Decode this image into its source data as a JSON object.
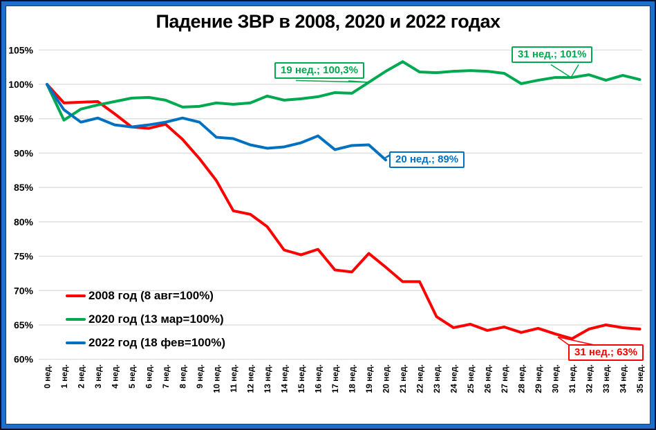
{
  "title": "Падение ЗВР в 2008, 2020 и 2022 годах",
  "chart_data": {
    "type": "line",
    "title": "Падение ЗВР в 2008, 2020 и 2022 годах",
    "xlabel": "",
    "ylabel": "",
    "ylim": [
      60,
      105
    ],
    "grid": true,
    "legend_position": "inside-bottom-left",
    "y_tick_labels": [
      "105%",
      "100%",
      "95%",
      "90%",
      "85%",
      "80%",
      "75%",
      "70%",
      "65%",
      "60%"
    ],
    "x_tick_labels": [
      "0 нед.",
      "1 нед.",
      "2 нед.",
      "3 нед.",
      "4 нед.",
      "5 нед.",
      "6 нед.",
      "7 нед.",
      "8 нед.",
      "9 нед.",
      "10 нед.",
      "11 нед.",
      "12 нед.",
      "13 нед.",
      "14 нед.",
      "15 нед.",
      "16 нед.",
      "17 нед.",
      "18 нед.",
      "19 нед.",
      "20 нед.",
      "21 нед.",
      "22 нед.",
      "23 нед.",
      "24 нед.",
      "25 нед.",
      "26 нед.",
      "27 нед.",
      "28 нед.",
      "29 нед.",
      "30 нед.",
      "31 нед.",
      "32 нед.",
      "33 нед.",
      "34 нед.",
      "35 нед."
    ],
    "series": [
      {
        "name": "2008 год (8 авг=100%)",
        "color": "#ff0000",
        "values": [
          100,
          97.3,
          97.4,
          97.5,
          95.7,
          93.8,
          93.6,
          94.2,
          92.0,
          89.2,
          86.0,
          81.6,
          81.1,
          79.3,
          75.9,
          75.2,
          76.0,
          73.0,
          72.7,
          75.4,
          73.4,
          71.3,
          71.3,
          66.2,
          64.6,
          65.1,
          64.2,
          64.7,
          63.9,
          64.5,
          63.7,
          63.0,
          64.4,
          65.0,
          64.6,
          64.4
        ]
      },
      {
        "name": "2020 год (13 мар=100%)",
        "color": "#00a84f",
        "values": [
          100,
          94.8,
          96.4,
          97.0,
          97.5,
          98.0,
          98.1,
          97.7,
          96.7,
          96.8,
          97.3,
          97.1,
          97.3,
          98.3,
          97.7,
          97.9,
          98.2,
          98.8,
          98.7,
          100.3,
          101.9,
          103.3,
          101.8,
          101.7,
          101.9,
          102.0,
          101.9,
          101.6,
          100.1,
          100.6,
          101.0,
          101.0,
          101.4,
          100.6,
          101.3,
          100.7
        ]
      },
      {
        "name": "2022 год (18 фев=100%)",
        "color": "#0070c0",
        "values": [
          100,
          96.3,
          94.5,
          95.1,
          94.1,
          93.8,
          94.1,
          94.5,
          95.1,
          94.5,
          92.3,
          92.1,
          91.2,
          90.7,
          90.9,
          91.5,
          92.5,
          90.5,
          91.1,
          91.2,
          89.0
        ]
      }
    ],
    "annotations": [
      {
        "label": "19 нед.; 100,3%",
        "series": 1,
        "week": 19,
        "value": 100.3
      },
      {
        "label": "31 нед.; 101%",
        "series": 1,
        "week": 31,
        "value": 101
      },
      {
        "label": "20 нед.; 89%",
        "series": 2,
        "week": 20,
        "value": 89
      },
      {
        "label": "31 нед.; 63%",
        "series": 0,
        "week": 31,
        "value": 63
      }
    ]
  }
}
